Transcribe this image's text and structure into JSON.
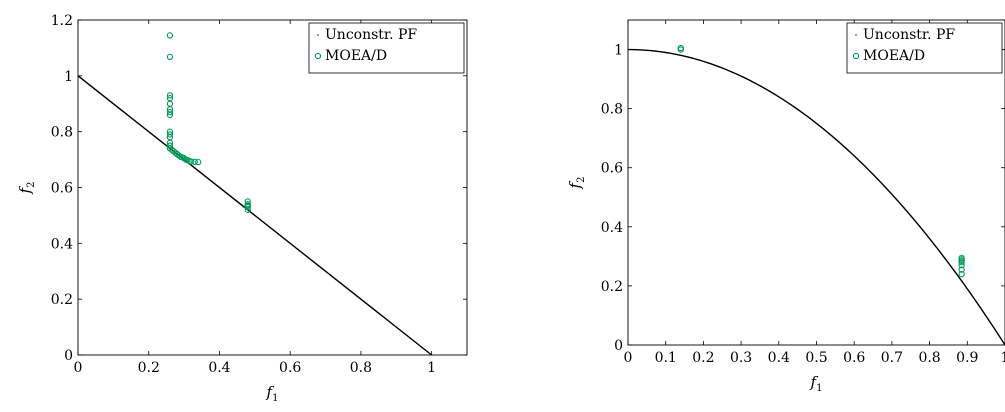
{
  "chart_data": [
    {
      "type": "scatter",
      "title": "",
      "xlabel": "f1",
      "ylabel": "f2",
      "xlim": [
        0,
        1.1
      ],
      "ylim": [
        0,
        1.2
      ],
      "xticks": [
        0,
        0.2,
        0.4,
        0.6,
        0.8,
        1
      ],
      "xtick_labels": [
        "0",
        "0.2",
        "0.4",
        "0.6",
        "0.8",
        "1"
      ],
      "yticks": [
        0,
        0.2,
        0.4,
        0.6,
        0.8,
        1,
        1.2
      ],
      "ytick_labels": [
        "0",
        "0.2",
        "0.4",
        "0.6",
        "0.8",
        "1",
        "1.2"
      ],
      "grid": false,
      "legend": "top-right",
      "series": [
        {
          "name": "Unconstr. PF",
          "kind": "line",
          "color": "#000000",
          "x": [
            0,
            1
          ],
          "y": [
            1,
            0
          ]
        },
        {
          "name": "MOEA/D",
          "kind": "scatter",
          "color": "#009b55",
          "x": [
            0.26,
            0.26,
            0.26,
            0.26,
            0.26,
            0.26,
            0.26,
            0.26,
            0.26,
            0.26,
            0.26,
            0.26,
            0.26,
            0.26,
            0.265,
            0.27,
            0.275,
            0.28,
            0.285,
            0.29,
            0.295,
            0.3,
            0.305,
            0.31,
            0.315,
            0.32,
            0.33,
            0.34,
            0.48,
            0.48,
            0.48,
            0.48,
            0.48
          ],
          "y": [
            1.145,
            1.068,
            0.93,
            0.92,
            0.9,
            0.88,
            0.87,
            0.86,
            0.8,
            0.79,
            0.78,
            0.76,
            0.75,
            0.74,
            0.735,
            0.73,
            0.725,
            0.72,
            0.715,
            0.71,
            0.708,
            0.705,
            0.7,
            0.698,
            0.695,
            0.693,
            0.692,
            0.691,
            0.55,
            0.54,
            0.535,
            0.53,
            0.52
          ]
        }
      ]
    },
    {
      "type": "scatter",
      "title": "",
      "xlabel": "f1",
      "ylabel": "f2",
      "xlim": [
        0,
        1.0
      ],
      "ylim": [
        0,
        1.1
      ],
      "xticks": [
        0,
        0.1,
        0.2,
        0.3,
        0.4,
        0.5,
        0.6,
        0.7,
        0.8,
        0.9,
        1
      ],
      "xtick_labels": [
        "0",
        "0.1",
        "0.2",
        "0.3",
        "0.4",
        "0.5",
        "0.6",
        "0.7",
        "0.8",
        "0.9",
        "1"
      ],
      "yticks": [
        0,
        0.2,
        0.4,
        0.6,
        0.8,
        1
      ],
      "ytick_labels": [
        "0",
        "0.2",
        "0.4",
        "0.6",
        "0.8",
        "1"
      ],
      "grid": false,
      "legend": "top-right",
      "series": [
        {
          "name": "Unconstr. PF",
          "kind": "curve",
          "color": "#000000",
          "function": "f2 = 1 - f1^2"
        },
        {
          "name": "MOEA/D",
          "kind": "scatter",
          "color": "#009b55",
          "x": [
            0.14,
            0.14,
            0.885,
            0.885,
            0.885,
            0.885,
            0.885,
            0.885,
            0.885
          ],
          "y": [
            1.005,
            1.0,
            0.295,
            0.29,
            0.285,
            0.28,
            0.27,
            0.255,
            0.24
          ]
        }
      ]
    }
  ]
}
